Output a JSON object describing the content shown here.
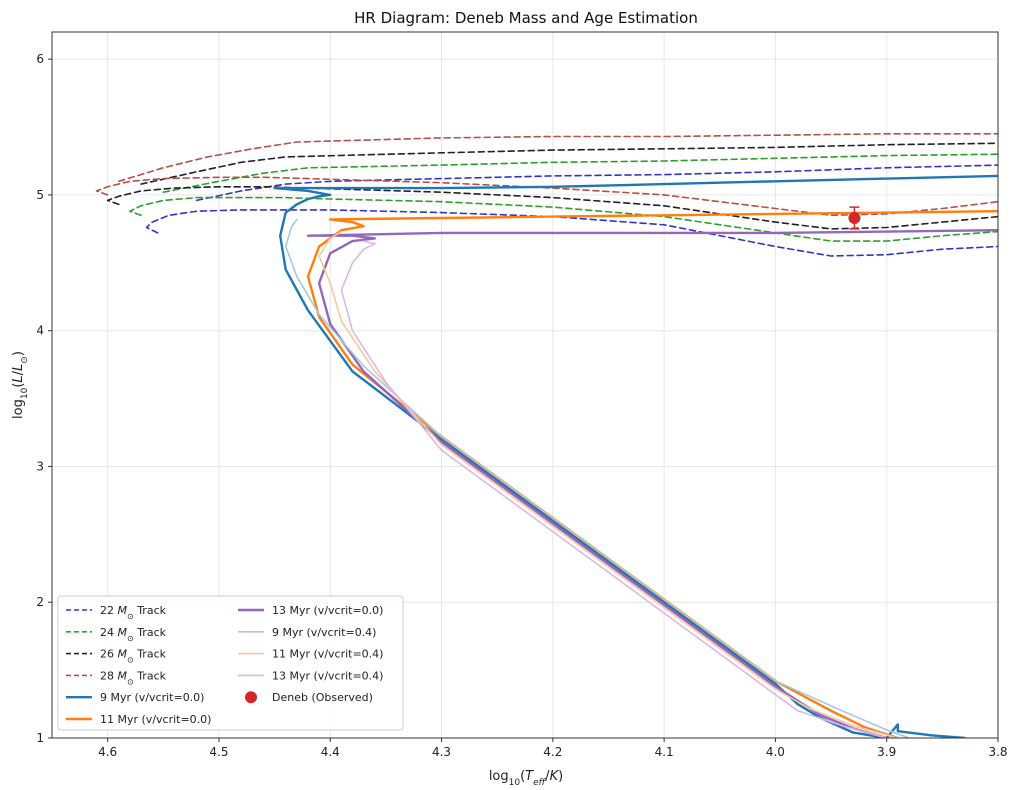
{
  "chart_data": {
    "type": "line",
    "title": "HR Diagram: Deneb Mass and Age Estimation",
    "xlabel": "log10(Teff/K)",
    "ylabel": "log10(L/L⊙)",
    "xlim": [
      4.65,
      3.8
    ],
    "ylim": [
      1.0,
      6.2
    ],
    "x_inverted": true,
    "grid": true,
    "legend_position": "lower-left",
    "x_ticks": [
      4.6,
      4.5,
      4.4,
      4.3,
      4.2,
      4.1,
      4.0,
      3.9,
      3.8
    ],
    "y_ticks": [
      1,
      2,
      3,
      4,
      5,
      6
    ],
    "series": [
      {
        "name": "22 M⊙ Track",
        "subscript": "⊙",
        "mass": "22",
        "color": "#3333cc",
        "style": "dashed",
        "width": 1.6,
        "x": [
          4.555,
          4.565,
          4.56,
          4.545,
          4.52,
          4.48,
          4.45,
          4.4,
          4.3,
          4.2,
          4.1,
          4.0,
          3.95,
          3.9,
          3.85,
          3.8
        ],
        "y": [
          4.72,
          4.76,
          4.8,
          4.85,
          4.88,
          4.89,
          4.89,
          4.89,
          4.87,
          4.84,
          4.78,
          4.62,
          4.55,
          4.56,
          4.6,
          4.62
        ]
      },
      {
        "name": "22 M⊙ Track (upper)",
        "legend": false,
        "color": "#3333cc",
        "style": "dashed",
        "width": 1.6,
        "x": [
          4.52,
          4.48,
          4.44,
          4.4,
          4.3,
          4.2,
          4.1,
          4.0,
          3.9,
          3.8
        ],
        "y": [
          4.96,
          5.03,
          5.08,
          5.1,
          5.12,
          5.14,
          5.15,
          5.17,
          5.2,
          5.22
        ]
      },
      {
        "name": "24 M⊙ Track",
        "subscript": "⊙",
        "mass": "24",
        "color": "#2ca02c",
        "style": "dashed",
        "width": 1.6,
        "x": [
          4.57,
          4.58,
          4.57,
          4.55,
          4.52,
          4.48,
          4.44,
          4.4,
          4.3,
          4.2,
          4.1,
          4.0,
          3.95,
          3.9,
          3.85,
          3.8
        ],
        "y": [
          4.85,
          4.88,
          4.92,
          4.96,
          4.98,
          4.98,
          4.98,
          4.97,
          4.95,
          4.91,
          4.84,
          4.72,
          4.66,
          4.66,
          4.7,
          4.73
        ]
      },
      {
        "name": "24 M⊙ Track (upper)",
        "legend": false,
        "color": "#2ca02c",
        "style": "dashed",
        "width": 1.6,
        "x": [
          4.55,
          4.5,
          4.46,
          4.42,
          4.3,
          4.2,
          4.1,
          4.0,
          3.9,
          3.8
        ],
        "y": [
          5.02,
          5.1,
          5.16,
          5.2,
          5.22,
          5.24,
          5.25,
          5.27,
          5.29,
          5.3
        ]
      },
      {
        "name": "26 M⊙ Track",
        "subscript": "⊙",
        "mass": "26",
        "color": "#222222",
        "style": "dashed",
        "width": 1.6,
        "x": [
          4.59,
          4.6,
          4.59,
          4.57,
          4.54,
          4.5,
          4.46,
          4.42,
          4.3,
          4.2,
          4.1,
          4.0,
          3.95,
          3.9,
          3.85,
          3.8
        ],
        "y": [
          4.93,
          4.96,
          4.99,
          5.03,
          5.05,
          5.06,
          5.06,
          5.05,
          5.02,
          4.98,
          4.92,
          4.8,
          4.75,
          4.76,
          4.8,
          4.84
        ]
      },
      {
        "name": "26 M⊙ Track (upper)",
        "legend": false,
        "color": "#222222",
        "style": "dashed",
        "width": 1.6,
        "x": [
          4.57,
          4.52,
          4.48,
          4.44,
          4.3,
          4.2,
          4.1,
          4.0,
          3.9,
          3.8
        ],
        "y": [
          5.08,
          5.17,
          5.24,
          5.28,
          5.31,
          5.33,
          5.34,
          5.35,
          5.37,
          5.38
        ]
      },
      {
        "name": "28 M⊙ Track",
        "subscript": "⊙",
        "mass": "28",
        "color": "#b5504a",
        "style": "dashed",
        "width": 1.6,
        "x": [
          4.6,
          4.61,
          4.6,
          4.58,
          4.55,
          4.5,
          4.46,
          4.42,
          4.3,
          4.2,
          4.1,
          4.0,
          3.95,
          3.9,
          3.85,
          3.8
        ],
        "y": [
          5.0,
          5.03,
          5.06,
          5.1,
          5.12,
          5.13,
          5.13,
          5.12,
          5.09,
          5.05,
          5.0,
          4.9,
          4.85,
          4.86,
          4.9,
          4.95
        ]
      },
      {
        "name": "28 M⊙ Track (upper)",
        "legend": false,
        "color": "#b5504a",
        "style": "dashed",
        "width": 1.6,
        "x": [
          4.59,
          4.55,
          4.51,
          4.47,
          4.43,
          4.3,
          4.2,
          4.1,
          4.0,
          3.9,
          3.8
        ],
        "y": [
          5.1,
          5.2,
          5.28,
          5.34,
          5.39,
          5.42,
          5.43,
          5.43,
          5.44,
          5.45,
          5.45
        ]
      },
      {
        "name": "9 Myr (v/vcrit=0.0)",
        "color": "#1f77b4",
        "style": "solid",
        "width": 2.4,
        "x": [
          3.83,
          3.86,
          3.89,
          3.89,
          3.9,
          3.93,
          3.96,
          3.98,
          4.0,
          4.1,
          4.2,
          4.3,
          4.38,
          4.42,
          4.44,
          4.445,
          4.44,
          4.43,
          4.42,
          4.41,
          4.4,
          4.42,
          4.45,
          4.4,
          4.3,
          4.2,
          4.1,
          4.0,
          3.9,
          3.8
        ],
        "y": [
          1.0,
          1.02,
          1.05,
          1.1,
          1.0,
          1.04,
          1.15,
          1.25,
          1.4,
          2.0,
          2.6,
          3.2,
          3.7,
          4.15,
          4.45,
          4.7,
          4.87,
          4.93,
          4.97,
          4.99,
          5.0,
          5.03,
          5.05,
          5.05,
          5.05,
          5.06,
          5.08,
          5.1,
          5.12,
          5.14
        ]
      },
      {
        "name": "11 Myr (v/vcrit=0.0)",
        "color": "#ff7f0e",
        "style": "solid",
        "width": 2.4,
        "x": [
          3.89,
          3.92,
          3.95,
          4.0,
          4.1,
          4.2,
          4.3,
          4.38,
          4.41,
          4.42,
          4.41,
          4.39,
          4.37,
          4.38,
          4.4,
          4.3,
          4.2,
          4.1,
          4.0,
          3.9,
          3.8
        ],
        "y": [
          1.0,
          1.08,
          1.2,
          1.42,
          2.02,
          2.62,
          3.22,
          3.75,
          4.1,
          4.4,
          4.62,
          4.74,
          4.77,
          4.8,
          4.82,
          4.83,
          4.84,
          4.85,
          4.86,
          4.87,
          4.88
        ]
      },
      {
        "name": "13 Myr (v/vcrit=0.0)",
        "color": "#9467bd",
        "style": "solid",
        "width": 2.4,
        "x": [
          3.9,
          3.93,
          3.96,
          4.0,
          4.1,
          4.2,
          4.3,
          4.37,
          4.4,
          4.41,
          4.4,
          4.38,
          4.36,
          4.38,
          4.42,
          4.3,
          4.2,
          4.1,
          4.0,
          3.9,
          3.8
        ],
        "y": [
          1.0,
          1.07,
          1.17,
          1.38,
          1.98,
          2.58,
          3.18,
          3.7,
          4.05,
          4.35,
          4.57,
          4.66,
          4.68,
          4.7,
          4.7,
          4.72,
          4.72,
          4.72,
          4.72,
          4.73,
          4.74
        ]
      },
      {
        "name": "9 Myr (v/vcrit=0.4)",
        "color": "#a6c8e0",
        "style": "solid",
        "width": 1.6,
        "x": [
          3.88,
          3.9,
          3.94,
          4.0,
          4.1,
          4.2,
          4.3,
          4.37,
          4.41,
          4.43,
          4.44,
          4.435,
          4.43
        ],
        "y": [
          1.0,
          1.06,
          1.2,
          1.42,
          2.02,
          2.62,
          3.22,
          3.74,
          4.12,
          4.4,
          4.62,
          4.76,
          4.82
        ]
      },
      {
        "name": "11 Myr (v/vcrit=0.4)",
        "color": "#f7c6a4",
        "style": "solid",
        "width": 1.6,
        "x": [
          3.89,
          3.93,
          3.97,
          4.0,
          4.1,
          4.2,
          4.3,
          4.36,
          4.39,
          4.4,
          4.41,
          4.4,
          4.39
        ],
        "y": [
          1.0,
          1.09,
          1.22,
          1.36,
          1.96,
          2.56,
          3.16,
          3.7,
          4.07,
          4.35,
          4.55,
          4.68,
          4.73
        ]
      },
      {
        "name": "13 Myr (v/vcrit=0.4)",
        "color": "#dcb8e0",
        "style": "solid",
        "width": 1.6,
        "x": [
          3.9,
          3.94,
          3.98,
          4.0,
          4.1,
          4.2,
          4.3,
          4.35,
          4.38,
          4.39,
          4.38,
          4.37,
          4.36,
          4.37
        ],
        "y": [
          1.0,
          1.09,
          1.2,
          1.32,
          1.92,
          2.52,
          3.12,
          3.62,
          4.0,
          4.3,
          4.5,
          4.6,
          4.64,
          4.66
        ]
      }
    ],
    "observed": {
      "name": "Deneb (Observed)",
      "color": "#d62728",
      "x": 3.929,
      "y": 4.83,
      "xerr": 0.005,
      "yerr": 0.08
    }
  }
}
